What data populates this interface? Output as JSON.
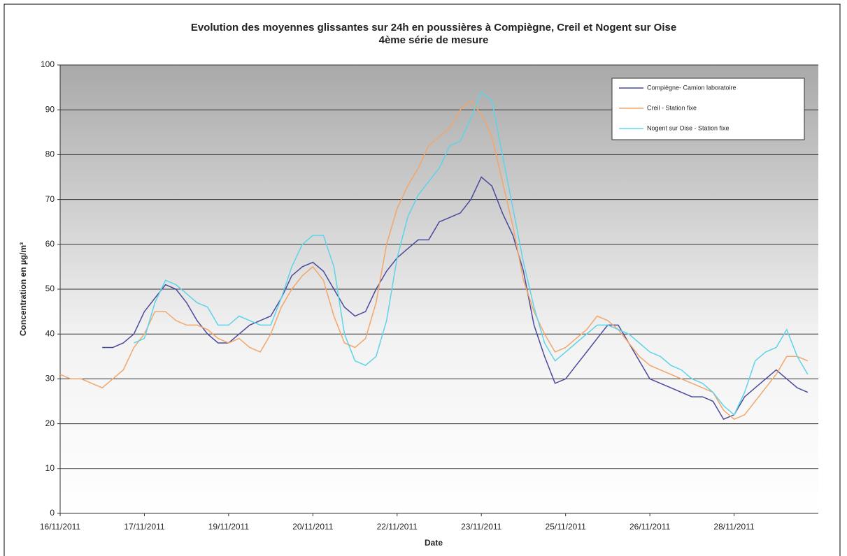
{
  "chart_data": {
    "type": "line",
    "title": "Evolution des moyennes glissantes sur 24h en poussières à Compiègne, Creil et Nogent sur Oise",
    "subtitle": "4ème série de mesure",
    "x_label": "Date",
    "y_label": "Concentration en µg/m³",
    "x": [
      0,
      0.125,
      0.25,
      0.375,
      0.5,
      0.625,
      0.75,
      0.875,
      1,
      1.125,
      1.25,
      1.375,
      1.5,
      1.625,
      1.75,
      1.875,
      2,
      2.125,
      2.25,
      2.375,
      2.5,
      2.625,
      2.75,
      2.875,
      3,
      3.125,
      3.25,
      3.375,
      3.5,
      3.625,
      3.75,
      3.875,
      4,
      4.125,
      4.25,
      4.375,
      4.5,
      4.625,
      4.75,
      4.875,
      5,
      5.125,
      5.25,
      5.375,
      5.5,
      5.625,
      5.75,
      5.875,
      6,
      6.125,
      6.25,
      6.375,
      6.5,
      6.625,
      6.75,
      6.875,
      7,
      7.125,
      7.25,
      7.375,
      7.5,
      7.625,
      7.75,
      7.875,
      8,
      8.125,
      8.25,
      8.375,
      8.5,
      8.625,
      8.75,
      8.875
    ],
    "series": [
      {
        "name": "Compiègne- Camion laboratoire",
        "color": "#4a4a9c",
        "values": [
          null,
          null,
          null,
          null,
          37,
          37,
          38,
          40,
          45,
          48,
          51,
          50,
          47,
          43,
          40,
          38,
          38,
          40,
          42,
          43,
          44,
          48,
          53,
          55,
          56,
          54,
          50,
          46,
          44,
          45,
          50,
          54,
          57,
          59,
          61,
          61,
          65,
          66,
          67,
          70,
          75,
          73,
          67,
          62,
          54,
          42,
          35,
          29,
          30,
          33,
          36,
          39,
          42,
          42,
          38,
          34,
          30,
          29,
          28,
          27,
          26,
          26,
          25,
          21,
          22,
          26,
          28,
          30,
          32,
          30,
          28,
          27
        ]
      },
      {
        "name": "Creil - Station fixe",
        "color": "#f2a66a",
        "values": [
          31,
          30,
          30,
          29,
          28,
          30,
          32,
          37,
          40,
          45,
          45,
          43,
          42,
          42,
          41,
          39,
          38,
          39,
          37,
          36,
          40,
          46,
          50,
          53,
          55,
          52,
          44,
          38,
          37,
          39,
          47,
          60,
          68,
          73,
          77,
          82,
          84,
          86,
          90,
          92,
          89,
          84,
          74,
          64,
          52,
          45,
          40,
          36,
          37,
          39,
          41,
          44,
          43,
          41,
          38,
          35,
          33,
          32,
          31,
          30,
          29,
          28,
          27,
          23,
          21,
          22,
          25,
          28,
          31,
          35,
          35,
          34
        ]
      },
      {
        "name": "Nogent sur Oise - Station fixe",
        "color": "#5fd3e8",
        "values": [
          null,
          null,
          null,
          null,
          null,
          null,
          null,
          38,
          39,
          47,
          52,
          51,
          49,
          47,
          46,
          42,
          42,
          44,
          43,
          42,
          42,
          48,
          55,
          60,
          62,
          62,
          55,
          40,
          34,
          33,
          35,
          43,
          57,
          66,
          71,
          74,
          77,
          82,
          83,
          88,
          94,
          92,
          80,
          68,
          56,
          46,
          38,
          34,
          36,
          38,
          40,
          42,
          42,
          41,
          40,
          38,
          36,
          35,
          33,
          32,
          30,
          29,
          27,
          24,
          22,
          27,
          34,
          36,
          37,
          41,
          35,
          31
        ]
      }
    ],
    "xlim": [
      0,
      9
    ],
    "xticks": [
      {
        "value": 0,
        "label": "16/11/2011"
      },
      {
        "value": 1,
        "label": "17/11/2011"
      },
      {
        "value": 2,
        "label": "19/11/2011"
      },
      {
        "value": 3,
        "label": "20/11/2011"
      },
      {
        "value": 4,
        "label": "22/11/2011"
      },
      {
        "value": 5,
        "label": "23/11/2011"
      },
      {
        "value": 6,
        "label": "25/11/2011"
      },
      {
        "value": 7,
        "label": "26/11/2011"
      },
      {
        "value": 8,
        "label": "28/11/2011"
      }
    ],
    "ylim": [
      0,
      100
    ],
    "yticks": [
      0,
      10,
      20,
      30,
      40,
      50,
      60,
      70,
      80,
      90,
      100
    ],
    "grid": true,
    "legend": "top-right"
  }
}
